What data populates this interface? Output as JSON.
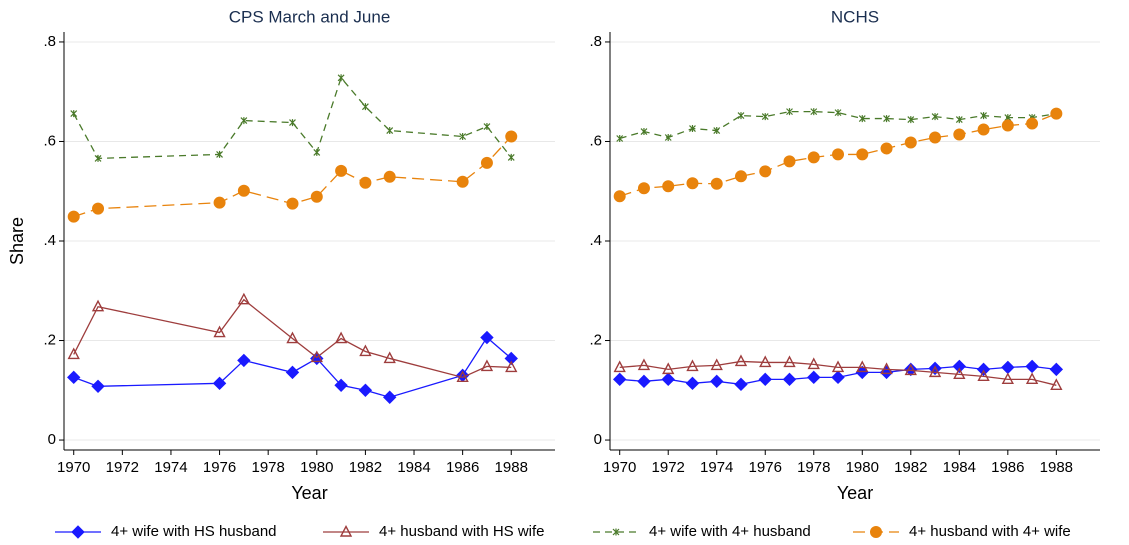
{
  "chart_data": [
    {
      "type": "line",
      "title": "CPS March and June",
      "xlabel": "Year",
      "ylabel": "Share",
      "x": [
        1970,
        1971,
        1976,
        1977,
        1979,
        1980,
        1981,
        1982,
        1983,
        1986,
        1987,
        1988
      ],
      "xlim": [
        1969.6,
        1989.8
      ],
      "xticks": [
        1970,
        1972,
        1974,
        1976,
        1978,
        1980,
        1982,
        1984,
        1986,
        1988
      ],
      "ylim": [
        -0.02,
        0.82
      ],
      "yticks": [
        0,
        {
          "value": 0.2,
          "label": ".2"
        },
        {
          "value": 0.4,
          "label": ".4"
        },
        {
          "value": 0.6,
          "label": ".6"
        },
        {
          "value": 0.8,
          "label": ".8"
        }
      ],
      "grid": true,
      "series": [
        {
          "name": "4+ wife with HS husband",
          "color": "#1a1aff",
          "marker": "diamond",
          "line_style": "solid",
          "values": [
            0.126,
            0.108,
            0.114,
            0.16,
            0.136,
            0.164,
            0.11,
            0.1,
            0.086,
            0.13,
            0.206,
            0.164
          ]
        },
        {
          "name": "4+ husband with HS wife",
          "color": "#9e3d3d",
          "marker": "triangle",
          "line_style": "solid",
          "values": [
            0.172,
            0.268,
            0.216,
            0.282,
            0.204,
            0.166,
            0.204,
            0.178,
            0.164,
            0.126,
            0.148,
            0.146
          ]
        },
        {
          "name": "4+ wife with 4+ husband",
          "color": "#4a7a2a",
          "marker": "x",
          "line_style": "dashed",
          "values": [
            0.656,
            0.566,
            0.574,
            0.642,
            0.638,
            0.578,
            0.728,
            0.67,
            0.622,
            0.61,
            0.63,
            0.568
          ]
        },
        {
          "name": "4+ husband with 4+ wife",
          "color": "#e8830c",
          "marker": "circle",
          "line_style": "longdash",
          "values": [
            0.449,
            0.465,
            0.477,
            0.501,
            0.475,
            0.489,
            0.541,
            0.517,
            0.529,
            0.519,
            0.557,
            0.61
          ]
        }
      ]
    },
    {
      "type": "line",
      "title": "NCHS",
      "xlabel": "Year",
      "x": [
        1970,
        1971,
        1972,
        1973,
        1974,
        1975,
        1976,
        1977,
        1978,
        1979,
        1980,
        1981,
        1982,
        1983,
        1984,
        1985,
        1986,
        1987,
        1988
      ],
      "xlim": [
        1969.6,
        1989.8
      ],
      "xticks": [
        1970,
        1972,
        1974,
        1976,
        1978,
        1980,
        1982,
        1984,
        1986,
        1988
      ],
      "ylim": [
        -0.02,
        0.82
      ],
      "yticks": [
        0,
        {
          "value": 0.2,
          "label": ".2"
        },
        {
          "value": 0.4,
          "label": ".4"
        },
        {
          "value": 0.6,
          "label": ".6"
        },
        {
          "value": 0.8,
          "label": ".8"
        }
      ],
      "grid": true,
      "series": [
        {
          "name": "4+ wife with HS husband",
          "color": "#1a1aff",
          "marker": "diamond",
          "line_style": "solid",
          "values": [
            0.122,
            0.118,
            0.122,
            0.114,
            0.118,
            0.112,
            0.122,
            0.122,
            0.126,
            0.126,
            0.136,
            0.136,
            0.142,
            0.144,
            0.148,
            0.142,
            0.146,
            0.148,
            0.142
          ]
        },
        {
          "name": "4+ husband with HS wife",
          "color": "#9e3d3d",
          "marker": "triangle",
          "line_style": "solid",
          "values": [
            0.146,
            0.15,
            0.142,
            0.148,
            0.15,
            0.158,
            0.156,
            0.156,
            0.152,
            0.146,
            0.146,
            0.142,
            0.14,
            0.136,
            0.132,
            0.128,
            0.122,
            0.122,
            0.11
          ]
        },
        {
          "name": "4+ wife with 4+ husband",
          "color": "#4a7a2a",
          "marker": "x",
          "line_style": "dashed",
          "values": [
            0.606,
            0.62,
            0.608,
            0.626,
            0.622,
            0.652,
            0.65,
            0.66,
            0.66,
            0.658,
            0.646,
            0.646,
            0.644,
            0.65,
            0.644,
            0.652,
            0.648,
            0.648,
            0.656
          ]
        },
        {
          "name": "4+ husband with 4+ wife",
          "color": "#e8830c",
          "marker": "circle",
          "line_style": "longdash",
          "values": [
            0.49,
            0.506,
            0.51,
            0.516,
            0.515,
            0.53,
            0.54,
            0.56,
            0.568,
            0.574,
            0.574,
            0.586,
            0.598,
            0.608,
            0.614,
            0.624,
            0.632,
            0.636,
            0.656
          ]
        }
      ]
    }
  ]
}
